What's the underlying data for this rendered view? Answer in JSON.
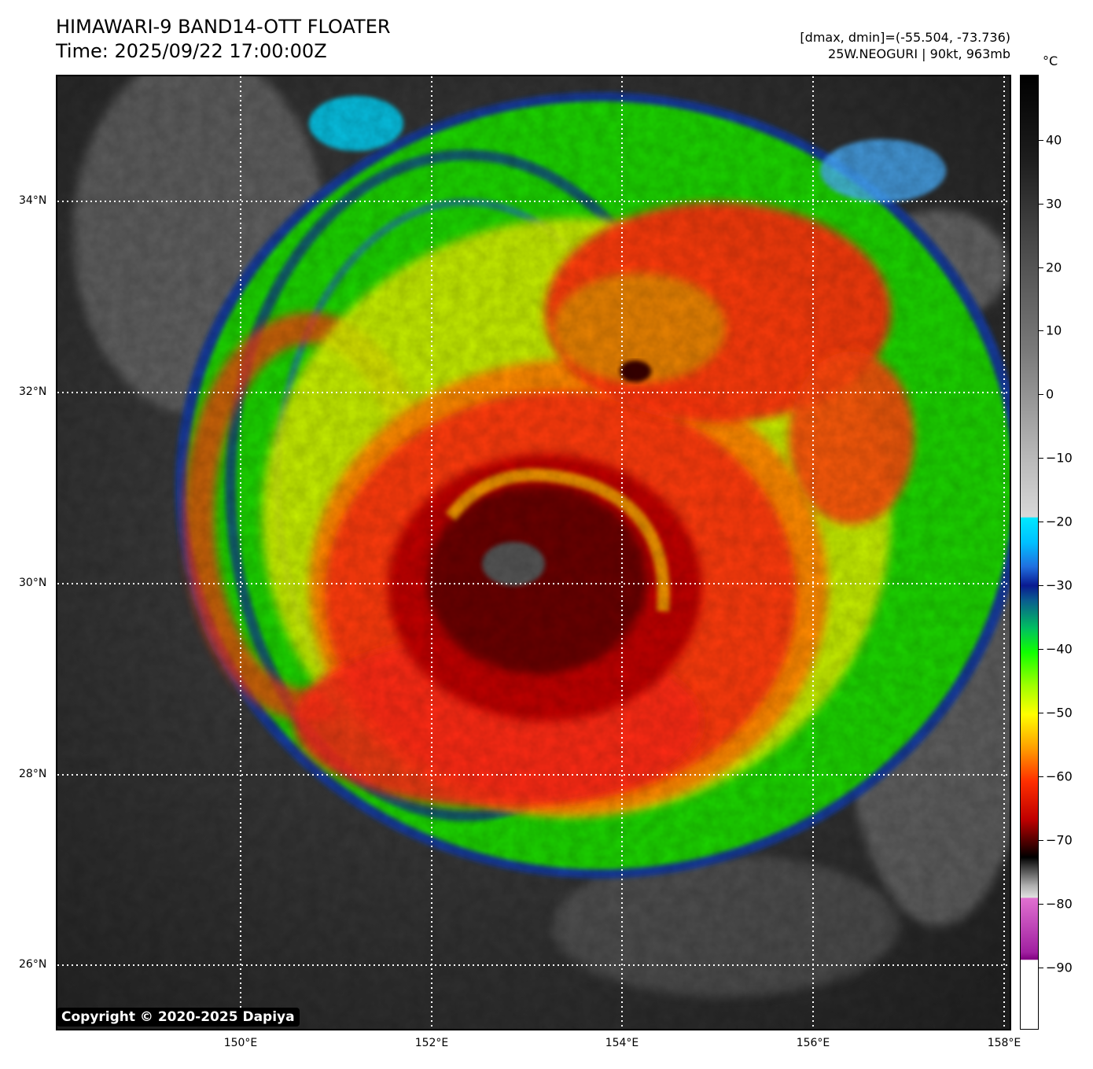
{
  "header": {
    "title": "HIMAWARI-9 BAND14-OTT FLOATER",
    "time": "Time: 2025/09/22 17:00:00Z",
    "range": "[dmax, dmin]=(-55.504, -73.736)",
    "storm": "25W.NEOGURI | 90kt, 963mb"
  },
  "map": {
    "lat_labels": [
      "34°N",
      "32°N",
      "30°N",
      "28°N",
      "26°N"
    ],
    "lon_labels": [
      "150°E",
      "152°E",
      "154°E",
      "156°E",
      "158°E"
    ],
    "copyright": "Copyright © 2020-2025 Dapiya"
  },
  "colorbar": {
    "unit": "°C",
    "ticks": [
      "40",
      "30",
      "20",
      "10",
      "0",
      "−10",
      "−20",
      "−30",
      "−40",
      "−50",
      "−60",
      "−70",
      "−80",
      "−90"
    ]
  }
}
